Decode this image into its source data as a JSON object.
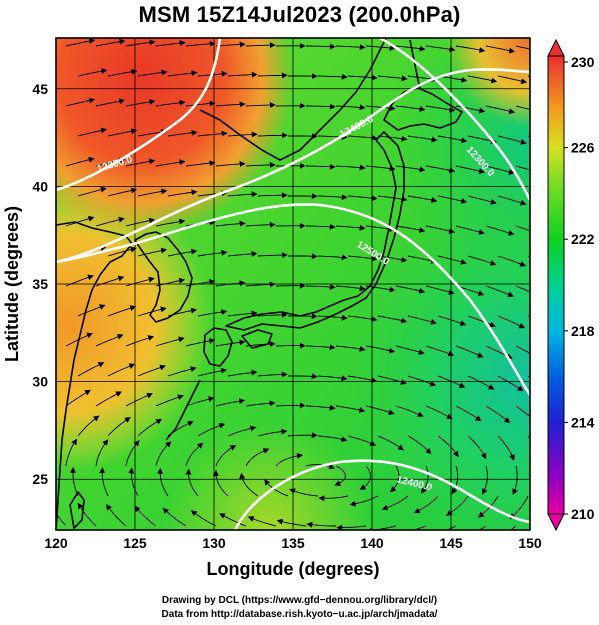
{
  "title": "MSM 15Z14Jul2023 (200.0hPa)",
  "axes": {
    "xlabel": "Longitude (degrees)",
    "ylabel": "Latitude  (degrees)",
    "xlim": [
      120,
      150
    ],
    "ylim": [
      22.4,
      47.6
    ],
    "xticks": [
      "120",
      "125",
      "130",
      "135",
      "140",
      "145",
      "150"
    ],
    "yticks": [
      "25",
      "30",
      "35",
      "40",
      "45"
    ]
  },
  "colorbar": {
    "ticks": [
      "230",
      "226",
      "222",
      "218",
      "214",
      "210"
    ],
    "range": [
      210,
      230
    ],
    "colors": [
      "#e8009a",
      "#7000c8",
      "#1030d8",
      "#00a8e8",
      "#00d098",
      "#10d020",
      "#48d828",
      "#b8e020",
      "#f0c020",
      "#f08030",
      "#e83830"
    ]
  },
  "contours": [
    {
      "label": "12300.0"
    },
    {
      "label": "12400.0"
    },
    {
      "label": "12500.0"
    },
    {
      "label": "12400.0"
    },
    {
      "label": "12300.0"
    }
  ],
  "credits": {
    "line1": "Drawing by DCL (https://www.gfd−dennou.org/library/dcl/)",
    "line2": "Data from http://database.rish.kyoto−u.ac.jp/arch/jmadata/"
  }
}
